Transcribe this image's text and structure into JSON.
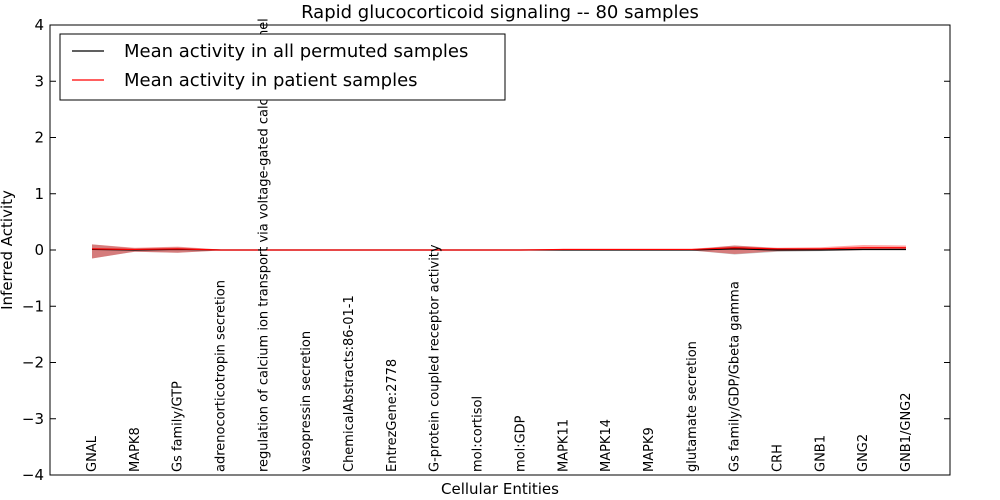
{
  "chart_data": {
    "type": "line",
    "title": "Rapid glucocorticoid signaling -- 80 samples",
    "xlabel": "Cellular Entities",
    "ylabel": "Inferred Activity",
    "ylim": [
      -4,
      4
    ],
    "yticks": [
      "−4",
      "−3",
      "−2",
      "−1",
      "0",
      "1",
      "2",
      "3",
      "4"
    ],
    "ytick_values": [
      -4,
      -3,
      -2,
      -1,
      0,
      1,
      2,
      3,
      4
    ],
    "categories": [
      "GNAL",
      "MAPK8",
      "Gs family/GTP",
      "adrenocorticotropin secretion",
      "regulation of calcium ion transport via voltage-gated calcium channel",
      "vasopressin secretion",
      "ChemicalAbstracts:86-01-1",
      "EntrezGene:2778",
      "G-protein coupled receptor activity",
      "mol:cortisol",
      "mol:GDP",
      "MAPK11",
      "MAPK14",
      "MAPK9",
      "glutamate secretion",
      "Gs family/GDP/Gbeta gamma",
      "CRH",
      "GNB1",
      "GNG2",
      "GNB1/GNG2"
    ],
    "legend": {
      "placement": "top-left",
      "entries": [
        {
          "label": "Mean activity in all permuted samples",
          "color": "#000000"
        },
        {
          "label": "Mean activity in patient samples",
          "color": "#ff0000"
        }
      ]
    },
    "series": [
      {
        "name": "Mean activity in all permuted samples",
        "color": "#000000",
        "values": [
          0.01,
          0.0,
          0.01,
          0.0,
          0.0,
          0.0,
          0.0,
          0.0,
          0.0,
          0.0,
          0.0,
          0.0,
          0.0,
          0.0,
          0.0,
          0.02,
          0.0,
          0.0,
          0.01,
          0.01
        ],
        "upper": [
          0.1,
          0.03,
          0.05,
          0.01,
          0.0,
          0.0,
          0.0,
          0.0,
          0.0,
          0.0,
          0.0,
          0.01,
          0.01,
          0.01,
          0.01,
          0.08,
          0.03,
          0.02,
          0.04,
          0.04
        ],
        "lower": [
          -0.15,
          -0.03,
          -0.05,
          -0.01,
          0.0,
          0.0,
          0.0,
          0.0,
          0.0,
          0.0,
          0.0,
          -0.01,
          -0.01,
          -0.01,
          -0.01,
          -0.08,
          -0.03,
          -0.02,
          -0.01,
          -0.01
        ]
      },
      {
        "name": "Mean activity in patient samples",
        "color": "#ff0000",
        "values": [
          0.02,
          0.01,
          0.02,
          0.0,
          0.0,
          0.0,
          0.0,
          0.0,
          0.0,
          0.0,
          0.0,
          0.01,
          0.01,
          0.01,
          0.01,
          0.04,
          0.02,
          0.02,
          0.04,
          0.04
        ],
        "upper": [
          0.1,
          0.04,
          0.06,
          0.01,
          0.0,
          0.0,
          0.0,
          0.0,
          0.0,
          0.0,
          0.0,
          0.02,
          0.02,
          0.02,
          0.02,
          0.08,
          0.04,
          0.05,
          0.09,
          0.08
        ],
        "lower": [
          -0.15,
          -0.03,
          -0.05,
          -0.01,
          0.0,
          0.0,
          0.0,
          0.0,
          0.0,
          0.0,
          0.0,
          -0.01,
          -0.01,
          -0.01,
          -0.01,
          -0.07,
          -0.02,
          -0.01,
          0.0,
          0.0
        ]
      }
    ],
    "grid": false
  }
}
